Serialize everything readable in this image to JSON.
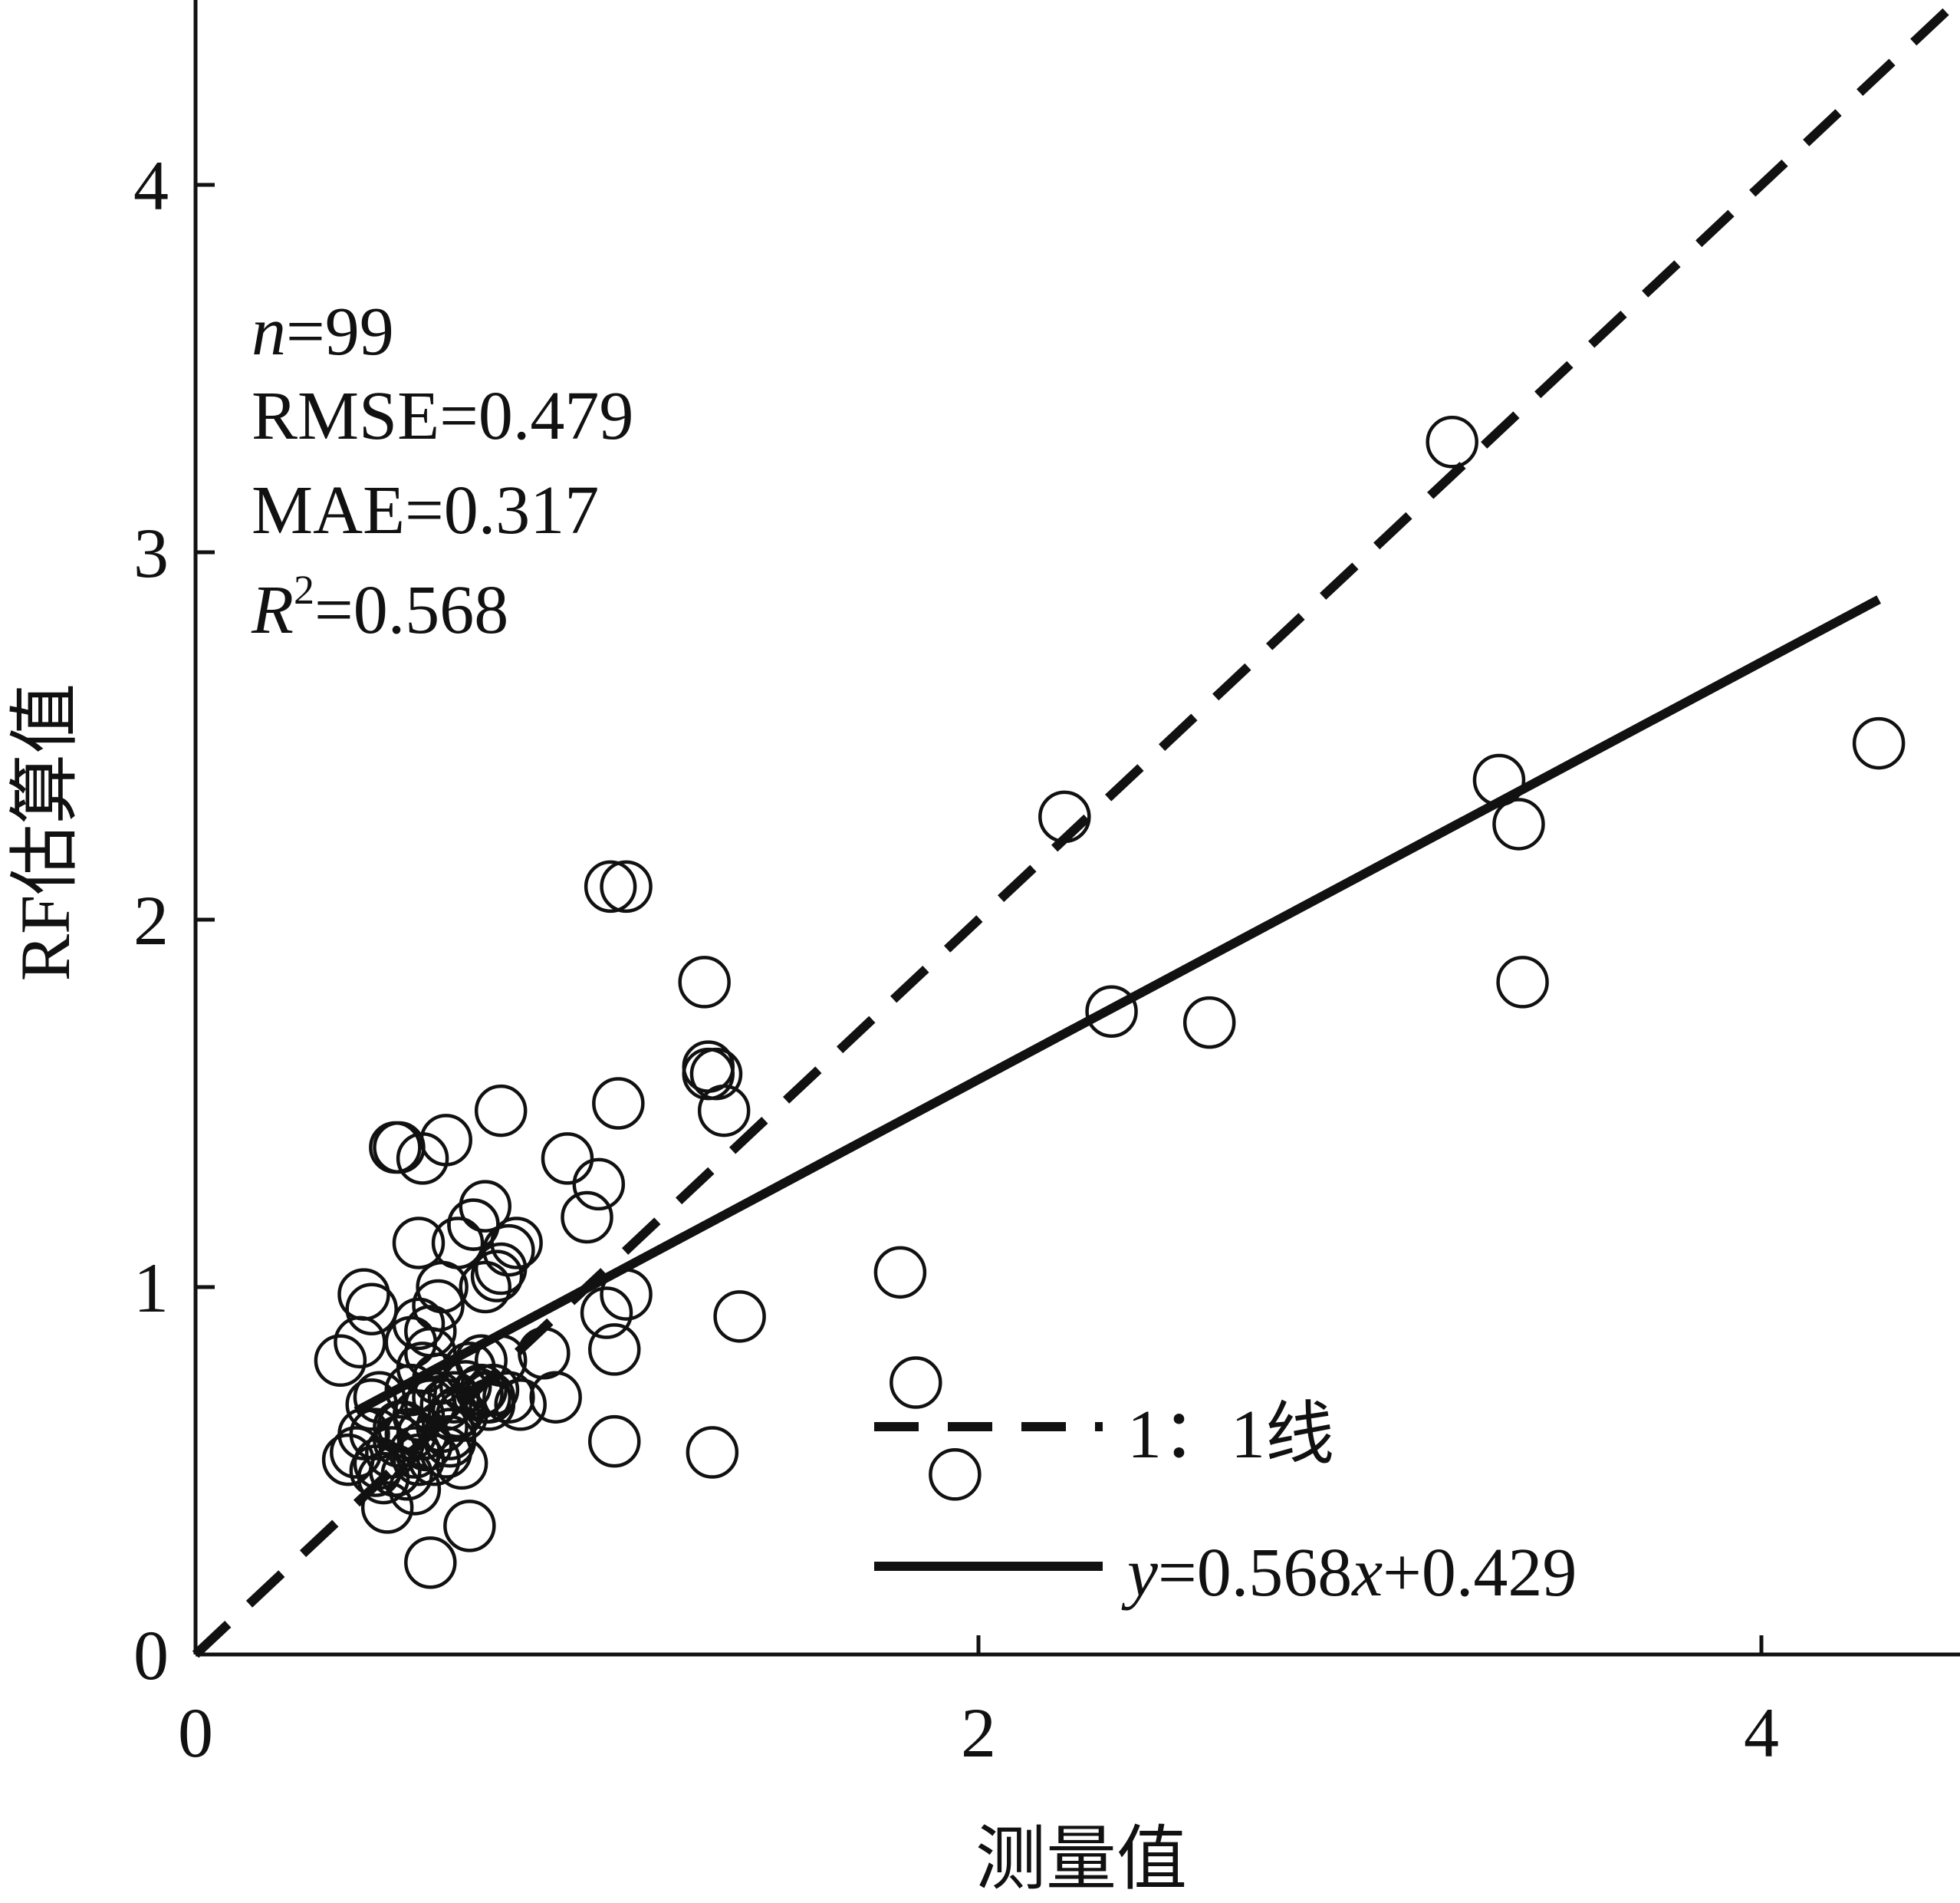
{
  "chart_data": {
    "type": "scatter",
    "xlabel": "测量值",
    "ylabel": "RF估算值",
    "xlim": [
      0,
      4.5
    ],
    "ylim": [
      0,
      4.5
    ],
    "x_ticks": [
      0,
      2,
      4
    ],
    "y_ticks": [
      0,
      1,
      2,
      3,
      4
    ],
    "grid": false,
    "stats": {
      "n": {
        "label": "n",
        "value": "=99"
      },
      "rmse": "RMSE=0.479",
      "mae": "MAE=0.317",
      "r2": {
        "label": "R",
        "sup": "2",
        "value": "=0.568"
      }
    },
    "legend": {
      "position": "bottom-right",
      "one_to_one": "1：1线",
      "fit_parts": {
        "y": "y",
        "eq": "=0.568",
        "x": "x",
        "rest": "+0.429"
      }
    },
    "one_to_one_line": {
      "from": [
        0,
        0
      ],
      "to": [
        4.5,
        4.5
      ],
      "style": "dashed"
    },
    "fit_line": {
      "slope": 0.568,
      "intercept": 0.429,
      "x_range": [
        0.41,
        4.3
      ],
      "style": "solid"
    },
    "points": {
      "marker": "open-circle",
      "x": [
        0.37,
        0.39,
        0.41,
        0.42,
        0.43,
        0.45,
        0.46,
        0.47,
        0.48,
        0.5,
        0.51,
        0.52,
        0.53,
        0.54,
        0.55,
        0.56,
        0.57,
        0.57,
        0.58,
        0.59,
        0.6,
        0.61,
        0.62,
        0.63,
        0.64,
        0.65,
        0.66,
        0.67,
        0.68,
        0.69,
        0.7,
        0.72,
        0.73,
        0.74,
        0.75,
        0.76,
        0.78,
        0.8,
        0.52,
        0.55,
        0.58,
        0.62,
        0.66,
        0.49,
        0.47,
        0.51,
        0.56,
        0.6,
        0.64,
        0.43,
        0.46,
        0.55,
        0.6,
        0.7,
        0.58,
        0.6,
        0.65,
        0.45,
        0.57,
        0.63,
        0.67,
        0.71,
        0.74,
        0.74,
        0.77,
        0.78,
        0.8,
        0.82,
        0.75,
        0.73,
        0.68,
        0.62,
        0.57,
        0.51,
        0.52,
        0.58,
        0.64,
        0.71,
        0.78,
        0.83,
        0.89,
        0.92,
        0.95,
        1.0,
        1.03,
        1.05,
        1.07,
        1.07,
        1.1,
        1.06,
        1.08,
        1.1,
        1.3,
        1.31,
        1.33,
        1.31,
        1.39,
        1.32,
        1.35
      ],
      "y": [
        0.8,
        0.53,
        0.55,
        0.85,
        0.98,
        0.94,
        0.6,
        0.52,
        0.48,
        0.55,
        0.5,
        0.58,
        0.62,
        0.49,
        0.6,
        0.55,
        0.65,
        0.53,
        0.6,
        0.57,
        0.68,
        0.53,
        0.7,
        0.62,
        0.68,
        0.6,
        0.7,
        0.66,
        0.52,
        0.73,
        0.78,
        0.71,
        0.8,
        0.7,
        0.68,
        0.72,
        0.8,
        0.7,
        0.62,
        0.72,
        0.6,
        0.75,
        0.65,
        0.4,
        0.7,
        0.5,
        0.45,
        0.25,
        0.55,
        0.6,
        0.5,
        0.85,
        0.88,
        0.35,
        0.78,
        0.82,
        0.58,
        0.68,
        0.9,
        1.0,
        1.12,
        1.17,
        1.0,
        1.22,
        1.03,
        1.05,
        1.1,
        1.12,
        0.7,
        0.72,
        0.65,
        0.95,
        1.12,
        1.38,
        1.38,
        1.35,
        1.4,
        1.17,
        1.48,
        0.68,
        0.82,
        0.7,
        1.35,
        1.19,
        1.28,
        0.93,
        0.58,
        0.83,
        0.98,
        2.09,
        1.5,
        2.09,
        1.83,
        1.6,
        1.58,
        1.58,
        0.92,
        0.55,
        1.48
      ]
    },
    "outliers": {
      "x": [
        1.8,
        1.84,
        1.94,
        2.22,
        2.34,
        2.59,
        3.21,
        3.33,
        3.38,
        3.39,
        4.3
      ],
      "y": [
        1.04,
        0.74,
        0.49,
        2.28,
        1.75,
        1.72,
        3.3,
        2.38,
        2.26,
        1.83,
        2.48
      ]
    }
  }
}
